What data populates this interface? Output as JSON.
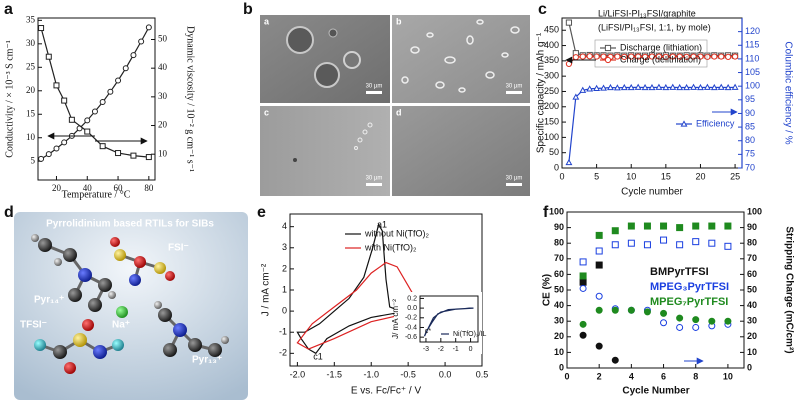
{
  "panel_labels": [
    "a",
    "b",
    "c",
    "d",
    "e",
    "f"
  ],
  "figures": {
    "b": {
      "labels": [
        "a",
        "b",
        "c",
        "d"
      ],
      "scale_bars": [
        "30 µm",
        "30 µm",
        "30 µm",
        "30 µm"
      ]
    },
    "d": {
      "title": "Pyrrolidinium based RTILs for SIBs",
      "labels": [
        "FSI⁻",
        "Pyr₁₄⁺",
        "Na⁺",
        "TFSI⁻",
        "Pyr₁₃⁺"
      ]
    }
  },
  "chart_data": [
    {
      "type": "line",
      "xlabel": "Temperature / °C",
      "ylabel": "Conductivity / × 10⁻³ S cm⁻¹",
      "y2label": "Dynamic viscosity / 10⁻² g cm⁻¹ s⁻¹",
      "xlim": [
        8,
        84
      ],
      "xticks": [
        20,
        40,
        60,
        80
      ],
      "ylim": [
        1,
        35.5
      ],
      "yticks": [
        5,
        10,
        15,
        20,
        25,
        30,
        35
      ],
      "y2lim": [
        1,
        57.5
      ],
      "y2ticks": [
        10,
        20,
        30,
        40,
        50
      ],
      "series": [
        {
          "color": "#222222",
          "marker": "circle",
          "filled": false,
          "line": true,
          "x": [
            10,
            15,
            20,
            25,
            30,
            35,
            40,
            45,
            50,
            55,
            60,
            65,
            70,
            75,
            80
          ],
          "values": [
            5.5,
            6.5,
            7.7,
            9,
            10.4,
            12,
            13.7,
            15.6,
            17.6,
            19.8,
            22.2,
            24.8,
            27.6,
            30.5,
            33.5
          ]
        },
        {
          "color": "#222222",
          "marker": "square",
          "filled": false,
          "line": true,
          "axis": "y2",
          "x": [
            10,
            15,
            20,
            25,
            30,
            40,
            50,
            60,
            70,
            80
          ],
          "values": [
            54,
            44,
            34,
            28.7,
            22,
            17.9,
            12.8,
            10.4,
            9.5,
            9
          ]
        }
      ]
    },
    {
      "type": "line",
      "annotations": [
        "Li/LiFSI-PI₁₃FSI/graphite",
        "(LiFSI/PI₁₃FSI, 1:1, by mole)"
      ],
      "xlabel": "Cycle number",
      "ylabel": "Specific capacity / mAh g⁻¹",
      "y2label": "Columbic efficiency / %",
      "y2color": "#2244cc",
      "xlim": [
        0,
        26
      ],
      "xticks": [
        0,
        5,
        10,
        15,
        20,
        25
      ],
      "ylim": [
        0,
        490
      ],
      "yticks": [
        0,
        50,
        100,
        150,
        200,
        250,
        300,
        350,
        400,
        450
      ],
      "y2lim": [
        70,
        125
      ],
      "y2ticks": [
        70,
        75,
        80,
        85,
        90,
        95,
        100,
        105,
        110,
        115,
        120
      ],
      "x": [
        1,
        2,
        3,
        4,
        5,
        6,
        7,
        8,
        9,
        10,
        11,
        12,
        13,
        14,
        15,
        16,
        17,
        18,
        19,
        20,
        21,
        22,
        23,
        24,
        25
      ],
      "series": [
        {
          "name": "Discharge (lithiation)",
          "color": "#555555",
          "marker": "square",
          "filled": false,
          "line": true,
          "values": [
            475,
            375,
            368,
            369,
            368,
            368,
            367,
            368,
            367,
            368,
            367,
            367,
            368,
            367,
            368,
            367,
            367,
            368,
            367,
            368,
            367,
            368,
            367,
            368,
            367
          ]
        },
        {
          "name": "Charge (delithiation)",
          "color": "#e03020",
          "marker": "circle",
          "filled": false,
          "line": true,
          "values": [
            340,
            362,
            364,
            365,
            364,
            364,
            363,
            364,
            363,
            364,
            364,
            363,
            364,
            364,
            363,
            364,
            364,
            363,
            364,
            364,
            363,
            364,
            364,
            363,
            364
          ]
        },
        {
          "name": "Efficiency",
          "color": "#2244cc",
          "marker": "triangle",
          "filled": false,
          "line": true,
          "axis": "y2",
          "values": [
            72,
            96,
            98.5,
            99,
            99.2,
            99.3,
            99.5,
            99.4,
            99.5,
            99.5,
            99.6,
            99.5,
            99.5,
            99.6,
            99.5,
            99.6,
            99.5,
            99.5,
            99.6,
            99.5,
            99.6,
            99.5,
            99.6,
            99.5,
            99.6
          ]
        }
      ]
    },
    {
      "type": "line",
      "annotations": [
        "a1",
        "c1"
      ],
      "xlabel": "E vs. Fc/Fc⁺ / V",
      "ylabel": "J / mA cm⁻²",
      "xlim": [
        -2.1,
        0.5
      ],
      "xticks": [
        {
          "value": -2,
          "label": "-2.0"
        },
        -1.5,
        {
          "value": -1,
          "label": "-1.0"
        },
        -0.5,
        {
          "value": 0,
          "label": "0.0"
        },
        0.5
      ],
      "ylim": [
        -2.6,
        4.6
      ],
      "yticks": [
        -2,
        -1,
        0,
        1,
        2,
        3,
        4
      ],
      "series": [
        {
          "name": "without Ni(TfO)₂",
          "color": "#111111",
          "line": true,
          "x": [
            0.3,
            -0.3,
            -0.6,
            -1.0,
            -1.3,
            -1.6,
            -1.75,
            -1.85,
            -1.95,
            -2.0,
            -1.9,
            -1.7,
            -1.5,
            -1.3,
            -1.1,
            -0.98,
            -0.9,
            -0.85,
            -0.8,
            -0.75,
            -0.6,
            0.3
          ],
          "values": [
            0,
            0,
            -0.05,
            -0.3,
            -0.7,
            -1.3,
            -2.0,
            -1.8,
            -1.3,
            -1.0,
            -1.0,
            -0.6,
            0,
            0.6,
            1.6,
            3.0,
            4.1,
            3.8,
            1.5,
            0.2,
            0,
            0
          ]
        },
        {
          "name": "with Ni(TfO)₂",
          "color": "#dd2222",
          "line": true,
          "x": [
            0.3,
            -0.5,
            -1.0,
            -1.5,
            -1.85,
            -2.0,
            -1.8,
            -1.5,
            -1.2,
            -1.0,
            -0.8,
            -0.65,
            -0.5,
            -0.35,
            -0.2,
            0.3
          ],
          "values": [
            0,
            -0.1,
            -0.5,
            -1.3,
            -1.8,
            -1.5,
            -0.6,
            0.2,
            1.0,
            1.8,
            2.3,
            2.1,
            1.2,
            0.3,
            0.05,
            0
          ]
        }
      ],
      "inset": {
        "type": "line",
        "ylabel": "J/ mA cm⁻²",
        "annotations": [
          "c*"
        ],
        "xlim": [
          -3.4,
          0.5
        ],
        "xticks": [
          -3,
          -2,
          -1,
          0
        ],
        "ylim": [
          -0.7,
          0.25
        ],
        "yticks": [
          0.2,
          {
            "value": 0,
            "label": "0.0"
          },
          -0.2,
          -0.4,
          -0.6
        ],
        "series": [
          {
            "name": "Ni(TfO)₂/IL",
            "color": "#1a2a5a",
            "line": true,
            "x": [
              0.2,
              -1,
              -2,
              -2.5,
              -2.9,
              -3.1,
              -3.0,
              -2.6,
              -2.2,
              -1.5,
              0.2
            ],
            "values": [
              0,
              -0.02,
              -0.08,
              -0.2,
              -0.45,
              -0.58,
              -0.5,
              -0.3,
              -0.12,
              -0.03,
              0
            ]
          }
        ]
      }
    },
    {
      "type": "scatter",
      "xlabel": "Cycle Number",
      "ylabel": "CE (%)",
      "y2label": "Stripping Charge (mC/cm²)",
      "xlim": [
        0,
        11
      ],
      "xticks": [
        0,
        2,
        4,
        6,
        8,
        10
      ],
      "ylim": [
        0,
        100
      ],
      "yticks": [
        0,
        10,
        20,
        30,
        40,
        50,
        60,
        70,
        80,
        90,
        100
      ],
      "y2lim": [
        0,
        100
      ],
      "y2ticks": [
        0,
        10,
        20,
        30,
        40,
        50,
        60,
        70,
        80,
        90,
        100
      ],
      "series": [
        {
          "name": "BMPyrTFSI",
          "color": "#111111",
          "marker": "square",
          "filled": true,
          "x": [
            1,
            2
          ],
          "values": [
            55,
            66
          ]
        },
        {
          "color": "#111111",
          "marker": "circle",
          "filled": true,
          "axis": "y2",
          "x": [
            1,
            2,
            3
          ],
          "values": [
            21,
            14,
            5
          ]
        },
        {
          "name": "MPEG₃PyrTFSI",
          "color": "#1a3fe0",
          "marker": "square",
          "filled": false,
          "x": [
            1,
            2,
            3,
            4,
            5,
            6,
            7,
            8,
            9,
            10
          ],
          "values": [
            68,
            75,
            79,
            80,
            79,
            82,
            79,
            81,
            80,
            78
          ]
        },
        {
          "color": "#1a3fe0",
          "marker": "circle",
          "filled": false,
          "axis": "y2",
          "x": [
            1,
            2,
            3,
            4,
            5,
            6,
            7,
            8,
            9,
            10
          ],
          "values": [
            51,
            46,
            38,
            37,
            37,
            29,
            26,
            26,
            27,
            28
          ]
        },
        {
          "name": "MPEG₇PyrTFSI",
          "color": "#1f8a1f",
          "marker": "square",
          "filled": true,
          "x": [
            1,
            2,
            3,
            4,
            5,
            6,
            7,
            8,
            9,
            10
          ],
          "values": [
            59,
            85,
            88,
            91,
            91,
            91,
            90,
            91,
            91,
            91
          ]
        },
        {
          "color": "#1f8a1f",
          "marker": "circle",
          "filled": true,
          "axis": "y2",
          "x": [
            1,
            2,
            3,
            4,
            5,
            6,
            7,
            8,
            9,
            10
          ],
          "values": [
            28,
            37,
            37,
            37,
            36,
            35,
            32,
            31,
            30,
            30
          ]
        }
      ]
    }
  ]
}
